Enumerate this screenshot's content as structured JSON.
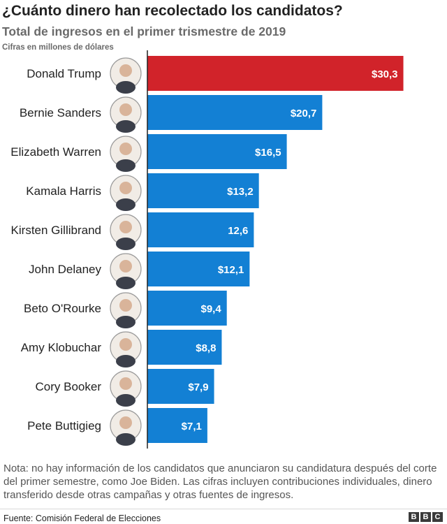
{
  "chart_data": {
    "type": "bar",
    "orientation": "horizontal",
    "title": "¿Cuánto dinero han recolectado los candidatos?",
    "subtitle": "Total de ingresos en el primer trismestre de 2019",
    "unit_note": "Cifras en millones de dólares",
    "categories": [
      "Donald Trump",
      "Bernie Sanders",
      "Elizabeth Warren",
      "Kamala Harris",
      "Kirsten Gillibrand",
      "John Delaney",
      "Beto O'Rourke",
      "Amy Klobuchar",
      "Cory Booker",
      "Pete Buttigieg"
    ],
    "values": [
      30.3,
      20.7,
      16.5,
      13.2,
      12.6,
      12.1,
      9.4,
      8.8,
      7.9,
      7.1
    ],
    "value_labels": [
      "$30,3",
      "$20,7",
      "$16,5",
      "$13,2",
      "12,6",
      "$12,1",
      "$9,4",
      "$8,8",
      "$7,9",
      "$7,1"
    ],
    "bar_colors": [
      "#d1232a",
      "#1380d4",
      "#1380d4",
      "#1380d4",
      "#1380d4",
      "#1380d4",
      "#1380d4",
      "#1380d4",
      "#1380d4",
      "#1380d4"
    ],
    "xlim": [
      0,
      31
    ],
    "grid": false,
    "legend": "none",
    "icons": "candidate-portrait-icon"
  },
  "footnote": "Nota: no hay información de los candidatos que anunciaron su candidatura después del corte del primer semestre, como Joe Biden. Las cifras incluyen contribuciones individuales, dinero transferido desde otras campañas y otras fuentes de ingresos.",
  "source": "Fuente: Comisión Federal de Elecciones",
  "logo": [
    "B",
    "B",
    "C"
  ]
}
